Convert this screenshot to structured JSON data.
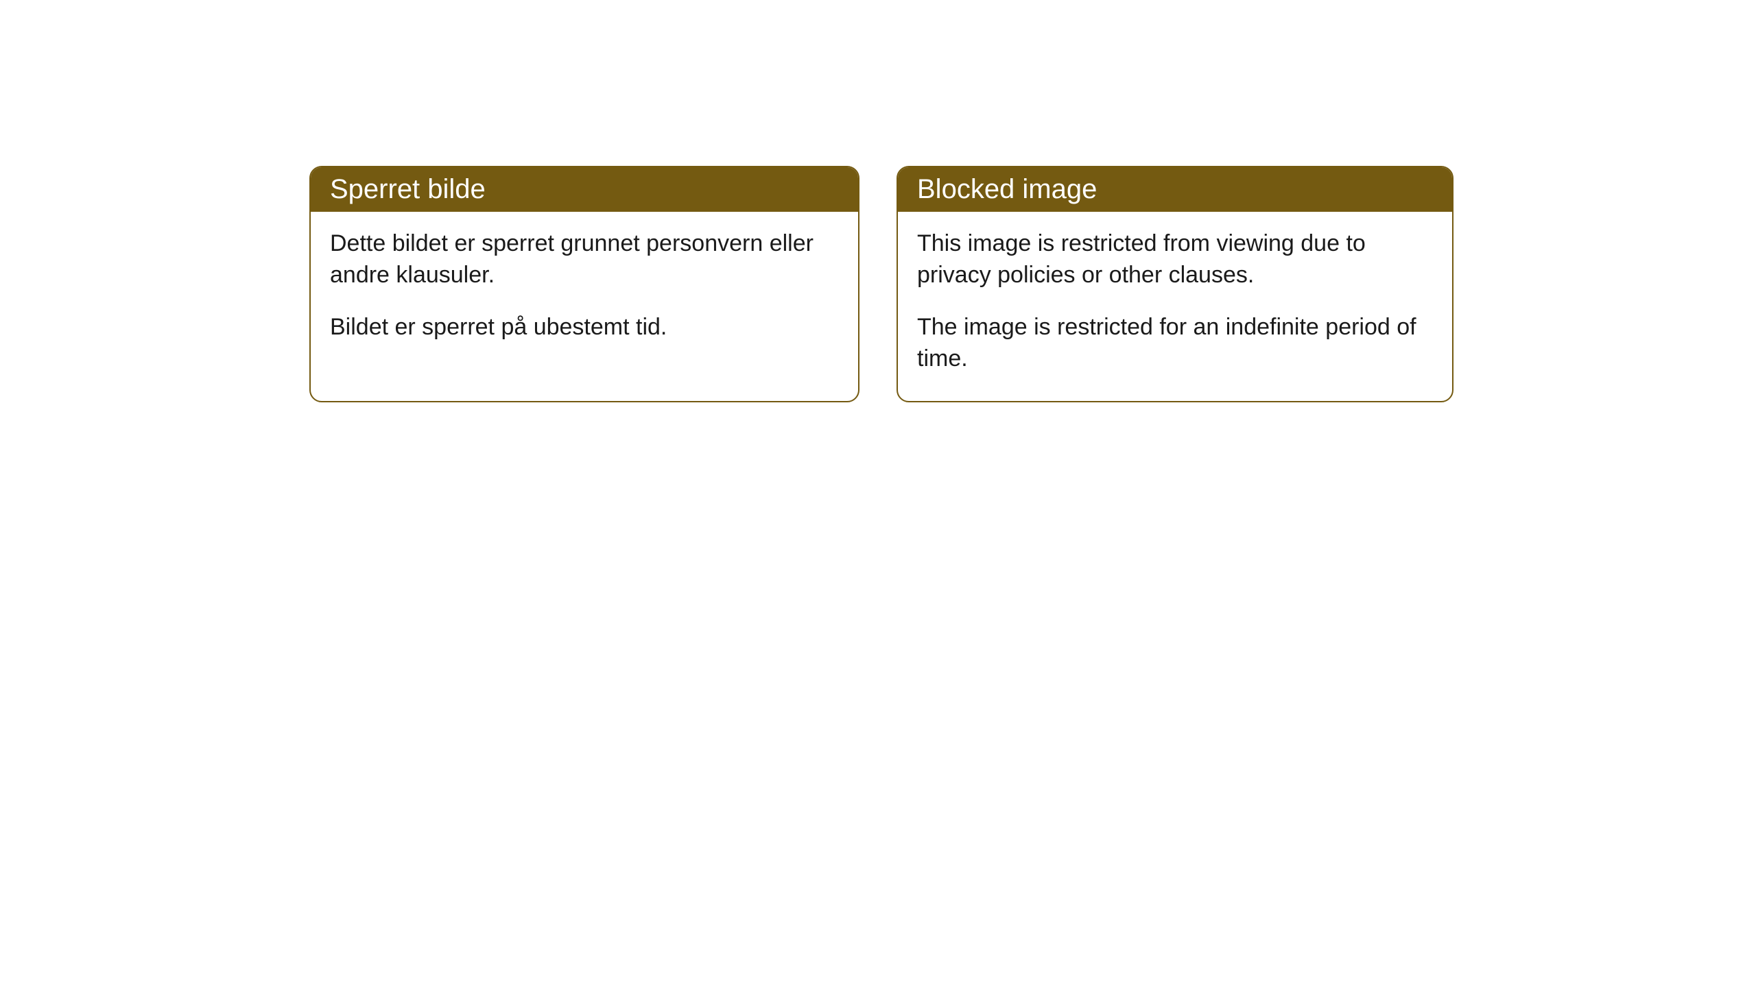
{
  "cards": [
    {
      "title": "Sperret bilde",
      "paragraph1": "Dette bildet er sperret grunnet personvern eller andre klausuler.",
      "paragraph2": "Bildet er sperret på ubestemt tid."
    },
    {
      "title": "Blocked image",
      "paragraph1": "This image is restricted from viewing due to privacy policies or other clauses.",
      "paragraph2": "The image is restricted for an indefinite period of time."
    }
  ],
  "styling": {
    "header_bg_color": "#745a11",
    "header_text_color": "#ffffff",
    "border_color": "#745a11",
    "body_text_color": "#1a1a1a",
    "background_color": "#ffffff",
    "border_radius": 18,
    "header_fontsize": 40,
    "body_fontsize": 34
  }
}
